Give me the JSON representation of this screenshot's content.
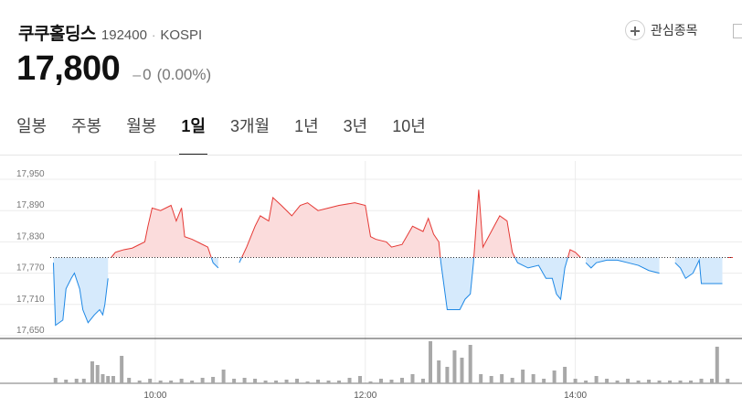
{
  "header": {
    "name": "쿠쿠홀딩스",
    "code": "192400",
    "separator": "·",
    "market": "KOSPI",
    "favorite_label": "관심종목",
    "favorite_icon": "plus-icon"
  },
  "quote": {
    "price": "17,800",
    "change_arrow": "–",
    "change": "0",
    "change_rate": "(0.00%)"
  },
  "tabs": [
    {
      "label": "일봉",
      "active": false
    },
    {
      "label": "주봉",
      "active": false
    },
    {
      "label": "월봉",
      "active": false
    },
    {
      "label": "1일",
      "active": true
    },
    {
      "label": "3개월",
      "active": false
    },
    {
      "label": "1년",
      "active": false
    },
    {
      "label": "3년",
      "active": false
    },
    {
      "label": "10년",
      "active": false
    }
  ],
  "chart_data": {
    "type": "area",
    "base_price": 17800,
    "colors": {
      "up_line": "#e53935",
      "up_fill": "#fbdcdc",
      "down_line": "#1e88e5",
      "down_fill": "#d6eafc",
      "volume": "#a8a8a8",
      "grid": "#ececec"
    },
    "ylim": [
      17650,
      17950
    ],
    "y_ticks": [
      "17,950",
      "17,890",
      "17,830",
      "17,770",
      "17,710",
      "17,650"
    ],
    "y_tick_values": [
      17950,
      17890,
      17830,
      17770,
      17710,
      17650
    ],
    "x_range_hours": [
      9.0,
      15.5
    ],
    "x_ticks": [
      "10:00",
      "12:00",
      "14:00"
    ],
    "x_tick_hours": [
      10,
      12,
      14
    ],
    "price_series": [
      [
        9.0,
        17800
      ],
      [
        9.03,
        17790
      ],
      [
        9.05,
        17670
      ],
      [
        9.12,
        17680
      ],
      [
        9.15,
        17740
      ],
      [
        9.2,
        17760
      ],
      [
        9.23,
        17770
      ],
      [
        9.28,
        17740
      ],
      [
        9.31,
        17700
      ],
      [
        9.36,
        17675
      ],
      [
        9.42,
        17690
      ],
      [
        9.47,
        17700
      ],
      [
        9.5,
        17690
      ],
      [
        9.52,
        17710
      ],
      [
        9.55,
        17760
      ],
      [
        9.58,
        17800
      ],
      [
        9.62,
        17810
      ],
      [
        9.7,
        17815
      ],
      [
        9.78,
        17818
      ],
      [
        9.85,
        17825
      ],
      [
        9.9,
        17830
      ],
      [
        9.93,
        17860
      ],
      [
        9.97,
        17895
      ],
      [
        10.05,
        17890
      ],
      [
        10.15,
        17900
      ],
      [
        10.2,
        17870
      ],
      [
        10.25,
        17895
      ],
      [
        10.28,
        17840
      ],
      [
        10.35,
        17835
      ],
      [
        10.45,
        17825
      ],
      [
        10.5,
        17820
      ],
      [
        10.55,
        17790
      ],
      [
        10.6,
        17780
      ],
      [
        10.75,
        17800
      ],
      [
        10.8,
        17790
      ],
      [
        10.87,
        17820
      ],
      [
        10.95,
        17860
      ],
      [
        11.0,
        17880
      ],
      [
        11.08,
        17870
      ],
      [
        11.12,
        17915
      ],
      [
        11.2,
        17900
      ],
      [
        11.3,
        17880
      ],
      [
        11.38,
        17900
      ],
      [
        11.45,
        17905
      ],
      [
        11.55,
        17890
      ],
      [
        11.65,
        17895
      ],
      [
        11.75,
        17900
      ],
      [
        11.9,
        17905
      ],
      [
        12.0,
        17900
      ],
      [
        12.05,
        17840
      ],
      [
        12.1,
        17835
      ],
      [
        12.2,
        17830
      ],
      [
        12.25,
        17820
      ],
      [
        12.35,
        17825
      ],
      [
        12.45,
        17860
      ],
      [
        12.55,
        17850
      ],
      [
        12.6,
        17875
      ],
      [
        12.65,
        17845
      ],
      [
        12.7,
        17830
      ],
      [
        12.72,
        17790
      ],
      [
        12.78,
        17700
      ],
      [
        12.9,
        17700
      ],
      [
        12.95,
        17720
      ],
      [
        13.0,
        17730
      ],
      [
        13.03,
        17790
      ],
      [
        13.08,
        17930
      ],
      [
        13.12,
        17820
      ],
      [
        13.2,
        17850
      ],
      [
        13.28,
        17880
      ],
      [
        13.35,
        17870
      ],
      [
        13.4,
        17810
      ],
      [
        13.45,
        17790
      ],
      [
        13.55,
        17780
      ],
      [
        13.65,
        17785
      ],
      [
        13.72,
        17760
      ],
      [
        13.78,
        17760
      ],
      [
        13.82,
        17730
      ],
      [
        13.86,
        17720
      ],
      [
        13.9,
        17780
      ],
      [
        13.95,
        17815
      ],
      [
        14.0,
        17810
      ],
      [
        14.05,
        17800
      ],
      [
        14.1,
        17790
      ],
      [
        14.15,
        17780
      ],
      [
        14.2,
        17790
      ],
      [
        14.3,
        17795
      ],
      [
        14.4,
        17795
      ],
      [
        14.5,
        17790
      ],
      [
        14.6,
        17785
      ],
      [
        14.7,
        17775
      ],
      [
        14.8,
        17770
      ],
      [
        14.85,
        17800
      ],
      [
        14.95,
        17790
      ],
      [
        15.0,
        17780
      ],
      [
        15.05,
        17760
      ],
      [
        15.12,
        17770
      ],
      [
        15.18,
        17795
      ],
      [
        15.2,
        17750
      ],
      [
        15.3,
        17750
      ],
      [
        15.4,
        17750
      ],
      [
        15.45,
        17800
      ],
      [
        15.5,
        17800
      ]
    ],
    "volume_series": [
      [
        9.05,
        6
      ],
      [
        9.15,
        4
      ],
      [
        9.25,
        5
      ],
      [
        9.32,
        5
      ],
      [
        9.4,
        24
      ],
      [
        9.45,
        20
      ],
      [
        9.5,
        10
      ],
      [
        9.55,
        8
      ],
      [
        9.6,
        8
      ],
      [
        9.68,
        30
      ],
      [
        9.75,
        6
      ],
      [
        9.85,
        3
      ],
      [
        9.95,
        5
      ],
      [
        10.05,
        3
      ],
      [
        10.15,
        3
      ],
      [
        10.25,
        5
      ],
      [
        10.35,
        3
      ],
      [
        10.45,
        6
      ],
      [
        10.55,
        7
      ],
      [
        10.65,
        15
      ],
      [
        10.75,
        5
      ],
      [
        10.85,
        6
      ],
      [
        10.95,
        5
      ],
      [
        11.05,
        3
      ],
      [
        11.15,
        3
      ],
      [
        11.25,
        4
      ],
      [
        11.35,
        5
      ],
      [
        11.45,
        2
      ],
      [
        11.55,
        4
      ],
      [
        11.65,
        3
      ],
      [
        11.75,
        3
      ],
      [
        11.85,
        6
      ],
      [
        11.95,
        8
      ],
      [
        12.05,
        2
      ],
      [
        12.15,
        5
      ],
      [
        12.25,
        4
      ],
      [
        12.35,
        6
      ],
      [
        12.45,
        10
      ],
      [
        12.55,
        5
      ],
      [
        12.62,
        46
      ],
      [
        12.7,
        25
      ],
      [
        12.78,
        18
      ],
      [
        12.85,
        36
      ],
      [
        12.92,
        28
      ],
      [
        13.0,
        42
      ],
      [
        13.1,
        10
      ],
      [
        13.2,
        8
      ],
      [
        13.3,
        10
      ],
      [
        13.4,
        6
      ],
      [
        13.5,
        15
      ],
      [
        13.6,
        10
      ],
      [
        13.7,
        5
      ],
      [
        13.8,
        14
      ],
      [
        13.9,
        18
      ],
      [
        14.0,
        5
      ],
      [
        14.1,
        3
      ],
      [
        14.2,
        8
      ],
      [
        14.3,
        5
      ],
      [
        14.4,
        3
      ],
      [
        14.5,
        5
      ],
      [
        14.6,
        3
      ],
      [
        14.7,
        4
      ],
      [
        14.8,
        3
      ],
      [
        14.9,
        3
      ],
      [
        15.0,
        3
      ],
      [
        15.1,
        3
      ],
      [
        15.2,
        5
      ],
      [
        15.3,
        5
      ],
      [
        15.35,
        40
      ],
      [
        15.45,
        5
      ]
    ]
  }
}
